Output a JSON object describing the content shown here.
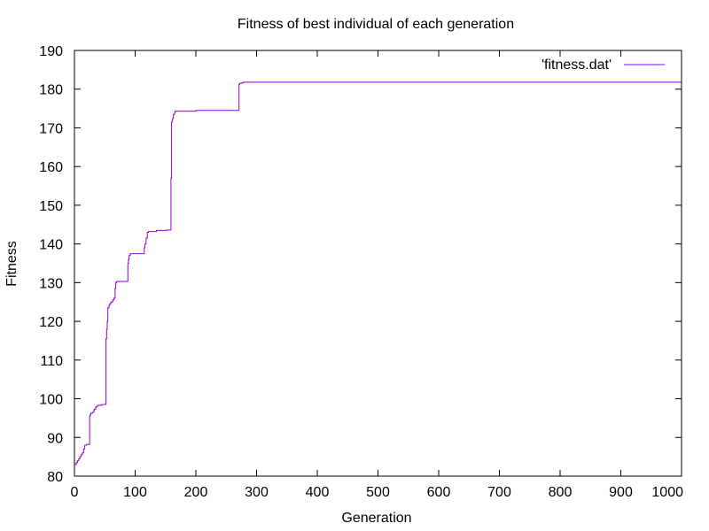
{
  "chart_data": {
    "type": "line",
    "title": "Fitness of best individual of each generation",
    "xlabel": "Generation",
    "ylabel": "Fitness",
    "xlim": [
      0,
      1000
    ],
    "ylim": [
      80,
      190
    ],
    "xticks": [
      0,
      100,
      200,
      300,
      400,
      500,
      600,
      700,
      800,
      900,
      1000
    ],
    "yticks": [
      80,
      90,
      100,
      110,
      120,
      130,
      140,
      150,
      160,
      170,
      180,
      190
    ],
    "grid": false,
    "legend_position": "top-right",
    "line_style": "steps",
    "series": [
      {
        "name": "'fitness.dat'",
        "color": "#9400d3",
        "x": [
          0,
          3,
          5,
          7,
          9,
          11,
          13,
          15,
          17,
          20,
          25,
          26,
          27,
          30,
          32,
          33,
          35,
          36,
          38,
          40,
          42,
          45,
          48,
          51,
          52,
          53,
          54,
          55,
          57,
          58,
          60,
          63,
          65,
          67,
          68,
          69,
          70,
          72,
          88,
          89,
          90,
          92,
          94,
          96,
          115,
          116,
          118,
          120,
          122,
          135,
          152,
          158,
          159,
          160,
          161,
          162,
          163,
          165,
          166,
          168,
          200,
          270,
          271,
          272,
          275,
          278,
          280,
          1000
        ],
        "y": [
          83,
          83.5,
          84,
          84.5,
          85,
          85.5,
          86,
          87,
          88,
          88.2,
          95.5,
          96,
          96.3,
          96.5,
          97,
          97.3,
          97.8,
          98,
          98.3,
          98.3,
          98.3,
          98.5,
          98.5,
          98.6,
          115.5,
          118,
          120,
          123.5,
          124,
          124.5,
          125,
          125.5,
          126,
          128.5,
          130,
          130.2,
          130.3,
          130.3,
          135,
          136,
          137,
          137.5,
          137.5,
          137.5,
          139,
          140,
          141.5,
          143,
          143.2,
          143.5,
          143.6,
          143.6,
          157,
          171.5,
          172,
          172.5,
          173.5,
          174,
          174.3,
          174.3,
          174.5,
          174.5,
          181.2,
          181.5,
          181.6,
          181.8,
          181.8,
          181.8
        ]
      }
    ]
  }
}
